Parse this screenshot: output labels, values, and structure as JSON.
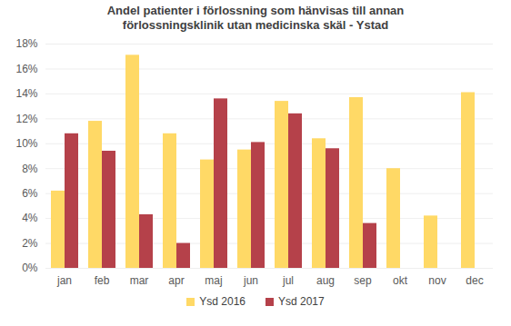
{
  "chart_data": {
    "type": "bar",
    "title": "Andel patienter i förlossning som hänvisas till annan förlossningsklinik utan medicinska skäl - Ystad",
    "categories": [
      "jan",
      "feb",
      "mar",
      "apr",
      "maj",
      "jun",
      "jul",
      "aug",
      "sep",
      "okt",
      "nov",
      "dec"
    ],
    "series": [
      {
        "name": "Ysd 2016",
        "color": "#ffd966",
        "values": [
          6.2,
          11.8,
          17.1,
          10.8,
          8.7,
          9.5,
          13.4,
          10.4,
          13.7,
          8.0,
          4.2,
          14.1
        ]
      },
      {
        "name": "Ysd 2017",
        "color": "#b5414a",
        "values": [
          10.8,
          9.4,
          4.3,
          2.0,
          13.6,
          10.1,
          12.4,
          9.6,
          3.6,
          null,
          null,
          null
        ]
      }
    ],
    "ylim": [
      0,
      18
    ],
    "yticks": [
      {
        "value": 0,
        "label": "0%"
      },
      {
        "value": 2,
        "label": "2%"
      },
      {
        "value": 4,
        "label": "4%"
      },
      {
        "value": 6,
        "label": "6%"
      },
      {
        "value": 8,
        "label": "8%"
      },
      {
        "value": 10,
        "label": "10%"
      },
      {
        "value": 12,
        "label": "12%"
      },
      {
        "value": 14,
        "label": "14%"
      },
      {
        "value": 16,
        "label": "16%"
      },
      {
        "value": 18,
        "label": "18%"
      }
    ],
    "grid": true,
    "legend": "bottom"
  }
}
